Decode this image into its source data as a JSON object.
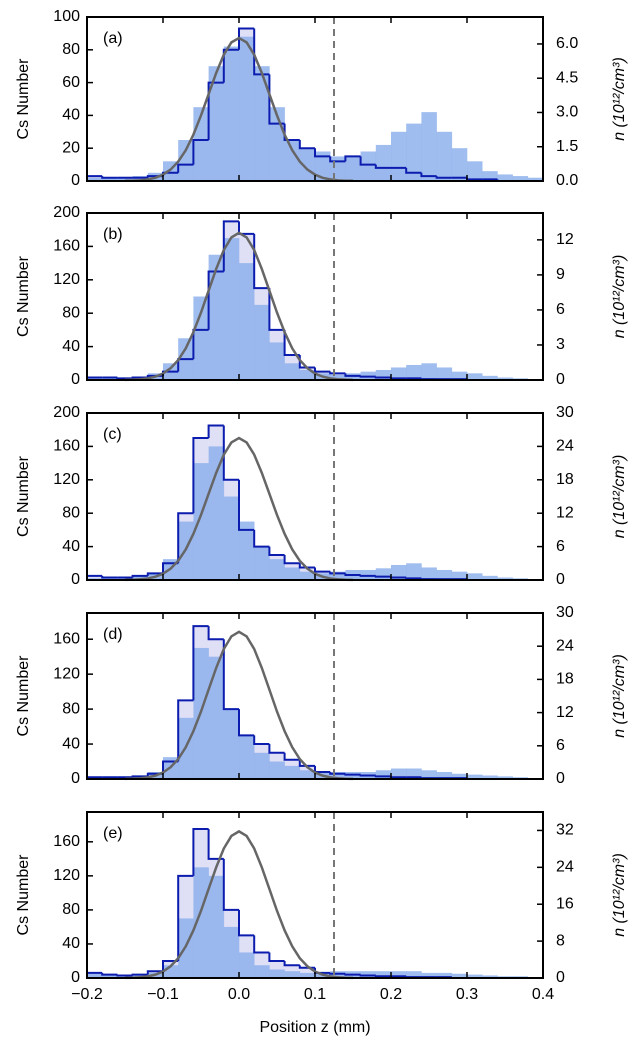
{
  "chart_data": [
    {
      "type": "histogram",
      "label": "(a)",
      "ylabel": "Cs Number",
      "y2label": "n (10¹²/cm³)",
      "vline": 0.125,
      "xlim": [
        -0.2,
        0.4
      ],
      "xticks": [
        -0.2,
        -0.1,
        0,
        0.1,
        0.2,
        0.3,
        0.4
      ],
      "ylim": [
        0,
        100
      ],
      "yticks": [
        0,
        20,
        40,
        60,
        80,
        100
      ],
      "y2lim": [
        0,
        7.18
      ],
      "y2ticks": [
        {
          "value": 0,
          "label": "0.0"
        },
        1.5,
        {
          "value": 3,
          "label": "3.0"
        },
        4.5,
        {
          "value": 6,
          "label": "6.0"
        }
      ],
      "bins": [
        -0.2,
        -0.18,
        -0.16,
        -0.14,
        -0.12,
        -0.1,
        -0.08,
        -0.06,
        -0.04,
        -0.02,
        0,
        0.02,
        0.04,
        0.06,
        0.08,
        0.1,
        0.12,
        0.14,
        0.16,
        0.18,
        0.2,
        0.22,
        0.24,
        0.26,
        0.28,
        0.3,
        0.32,
        0.34,
        0.36,
        0.38,
        0.4
      ],
      "series": [
        {
          "style": "filled",
          "color": "#8fb2ec",
          "values": [
            2,
            2,
            2,
            3,
            5,
            12,
            25,
            45,
            70,
            82,
            88,
            70,
            45,
            25,
            20,
            18,
            15,
            15,
            18,
            22,
            30,
            35,
            42,
            30,
            20,
            12,
            6,
            4,
            3,
            2
          ]
        },
        {
          "style": "step",
          "color": "#0b1cae",
          "fill": "#dfdff6",
          "values": [
            3,
            2,
            2,
            2,
            3,
            5,
            10,
            25,
            60,
            80,
            93,
            65,
            35,
            25,
            20,
            15,
            12,
            15,
            10,
            8,
            8,
            5,
            3,
            2,
            2,
            1,
            1,
            0,
            0,
            0
          ]
        },
        {
          "style": "line",
          "axis": "y2",
          "color": "#666666",
          "x": [
            -0.15,
            -0.14,
            -0.13,
            -0.12,
            -0.11,
            -0.1,
            -0.09,
            -0.08,
            -0.07,
            -0.06,
            -0.05,
            -0.04,
            -0.03,
            -0.02,
            -0.01,
            0,
            0.01,
            0.02,
            0.03,
            0.04,
            0.05,
            0.06,
            0.07,
            0.08,
            0.09,
            0.1,
            0.11,
            0.12,
            0.13,
            0.14,
            0.15
          ],
          "values": [
            0.01,
            0.01,
            0.03,
            0.07,
            0.14,
            0.28,
            0.5,
            0.85,
            1.35,
            2.03,
            2.87,
            3.8,
            4.73,
            5.53,
            6.07,
            6.26,
            6.07,
            5.53,
            4.73,
            3.8,
            2.87,
            2.03,
            1.35,
            0.85,
            0.5,
            0.28,
            0.14,
            0.07,
            0.03,
            0.01,
            0.01
          ]
        }
      ]
    },
    {
      "type": "histogram",
      "label": "(b)",
      "ylabel": "Cs Number",
      "y2label": "n (10¹²/cm³)",
      "vline": 0.125,
      "xlim": [
        -0.2,
        0.4
      ],
      "xticks": [
        -0.2,
        -0.1,
        0,
        0.1,
        0.2,
        0.3,
        0.4
      ],
      "ylim": [
        0,
        200
      ],
      "yticks": [
        0,
        40,
        80,
        120,
        160,
        200
      ],
      "y2lim": [
        0,
        14.3
      ],
      "y2ticks": [
        0,
        3,
        6,
        9,
        12
      ],
      "bins": [
        -0.2,
        -0.18,
        -0.16,
        -0.14,
        -0.12,
        -0.1,
        -0.08,
        -0.06,
        -0.04,
        -0.02,
        0,
        0.02,
        0.04,
        0.06,
        0.08,
        0.1,
        0.12,
        0.14,
        0.16,
        0.18,
        0.2,
        0.22,
        0.24,
        0.26,
        0.28,
        0.3,
        0.32,
        0.34,
        0.36,
        0.38,
        0.4
      ],
      "series": [
        {
          "style": "filled",
          "color": "#8fb2ec",
          "values": [
            2,
            3,
            3,
            4,
            8,
            20,
            50,
            100,
            150,
            170,
            140,
            90,
            45,
            20,
            12,
            8,
            6,
            8,
            10,
            12,
            15,
            18,
            20,
            15,
            10,
            8,
            5,
            3,
            2,
            1
          ]
        },
        {
          "style": "step",
          "color": "#0b1cae",
          "fill": "#dfdff6",
          "values": [
            3,
            3,
            2,
            3,
            5,
            10,
            25,
            60,
            130,
            190,
            175,
            110,
            60,
            30,
            15,
            10,
            8,
            5,
            4,
            3,
            2,
            2,
            1,
            1,
            1,
            0,
            0,
            0,
            0,
            0
          ]
        },
        {
          "style": "line",
          "axis": "y2",
          "color": "#666666",
          "x": [
            -0.15,
            -0.14,
            -0.13,
            -0.12,
            -0.11,
            -0.1,
            -0.09,
            -0.08,
            -0.07,
            -0.06,
            -0.05,
            -0.04,
            -0.03,
            -0.02,
            -0.01,
            0,
            0.01,
            0.02,
            0.03,
            0.04,
            0.05,
            0.06,
            0.07,
            0.08,
            0.09,
            0.1,
            0.11,
            0.12,
            0.13,
            0.14,
            0.15
          ],
          "values": [
            0.01,
            0.03,
            0.06,
            0.14,
            0.29,
            0.55,
            1.01,
            1.7,
            2.72,
            4.1,
            5.77,
            7.65,
            9.51,
            11.13,
            12.21,
            12.6,
            12.21,
            11.13,
            9.51,
            7.65,
            5.77,
            4.1,
            2.72,
            1.7,
            1.01,
            0.55,
            0.29,
            0.14,
            0.06,
            0.03,
            0.01
          ]
        }
      ]
    },
    {
      "type": "histogram",
      "label": "(c)",
      "ylabel": "Cs Number",
      "y2label": "n (10¹²/cm³)",
      "vline": 0.125,
      "xlim": [
        -0.2,
        0.4
      ],
      "xticks": [
        -0.2,
        -0.1,
        0,
        0.1,
        0.2,
        0.3,
        0.4
      ],
      "ylim": [
        0,
        200
      ],
      "yticks": [
        0,
        40,
        80,
        120,
        160,
        200
      ],
      "y2lim": [
        0,
        30
      ],
      "y2ticks": [
        0,
        6,
        12,
        18,
        24,
        30
      ],
      "bins": [
        -0.2,
        -0.18,
        -0.16,
        -0.14,
        -0.12,
        -0.1,
        -0.08,
        -0.06,
        -0.04,
        -0.02,
        0,
        0.02,
        0.04,
        0.06,
        0.08,
        0.1,
        0.12,
        0.14,
        0.16,
        0.18,
        0.2,
        0.22,
        0.24,
        0.26,
        0.28,
        0.3,
        0.32,
        0.34,
        0.36,
        0.38,
        0.4
      ],
      "series": [
        {
          "style": "filled",
          "color": "#8fb2ec",
          "values": [
            2,
            2,
            3,
            4,
            8,
            25,
            70,
            140,
            160,
            100,
            70,
            40,
            25,
            15,
            10,
            8,
            10,
            12,
            12,
            14,
            18,
            20,
            15,
            12,
            10,
            8,
            5,
            3,
            2,
            1
          ]
        },
        {
          "style": "step",
          "color": "#0b1cae",
          "fill": "#dfdff6",
          "values": [
            5,
            3,
            3,
            5,
            8,
            20,
            80,
            170,
            185,
            120,
            60,
            40,
            30,
            20,
            15,
            10,
            8,
            6,
            5,
            4,
            3,
            2,
            1,
            1,
            1,
            0,
            0,
            0,
            0,
            0
          ]
        },
        {
          "style": "line",
          "axis": "y2",
          "color": "#666666",
          "x": [
            -0.15,
            -0.14,
            -0.13,
            -0.12,
            -0.11,
            -0.1,
            -0.09,
            -0.08,
            -0.07,
            -0.06,
            -0.05,
            -0.04,
            -0.03,
            -0.02,
            -0.01,
            0,
            0.01,
            0.02,
            0.03,
            0.04,
            0.05,
            0.06,
            0.07,
            0.08,
            0.09,
            0.1,
            0.11,
            0.12,
            0.13,
            0.14,
            0.15
          ],
          "values": [
            0.03,
            0.05,
            0.13,
            0.28,
            0.59,
            1.12,
            2.04,
            3.44,
            5.51,
            8.29,
            11.68,
            15.48,
            19.25,
            22.52,
            24.71,
            25.5,
            24.71,
            22.52,
            19.25,
            15.48,
            11.68,
            8.29,
            5.51,
            3.44,
            2.04,
            1.12,
            0.59,
            0.28,
            0.13,
            0.05,
            0.03
          ]
        }
      ]
    },
    {
      "type": "histogram",
      "label": "(d)",
      "ylabel": "Cs Number",
      "y2label": "n (10¹²/cm³)",
      "vline": 0.125,
      "xlim": [
        -0.2,
        0.4
      ],
      "xticks": [
        -0.2,
        -0.1,
        0,
        0.1,
        0.2,
        0.3,
        0.4
      ],
      "ylim": [
        0,
        190
      ],
      "yticks": [
        0,
        40,
        80,
        120,
        160
      ],
      "y2lim": [
        0,
        30
      ],
      "y2ticks": [
        0,
        6,
        12,
        18,
        24,
        30
      ],
      "bins": [
        -0.2,
        -0.18,
        -0.16,
        -0.14,
        -0.12,
        -0.1,
        -0.08,
        -0.06,
        -0.04,
        -0.02,
        0,
        0.02,
        0.04,
        0.06,
        0.08,
        0.1,
        0.12,
        0.14,
        0.16,
        0.18,
        0.2,
        0.22,
        0.24,
        0.26,
        0.28,
        0.3,
        0.32,
        0.34,
        0.36,
        0.38,
        0.4
      ],
      "series": [
        {
          "style": "filled",
          "color": "#8fb2ec",
          "values": [
            3,
            3,
            3,
            4,
            8,
            25,
            70,
            150,
            140,
            80,
            50,
            30,
            20,
            15,
            10,
            8,
            8,
            8,
            8,
            10,
            12,
            12,
            10,
            8,
            6,
            5,
            4,
            3,
            2,
            1
          ]
        },
        {
          "style": "step",
          "color": "#0b1cae",
          "fill": "#dfdff6",
          "values": [
            2,
            2,
            2,
            3,
            6,
            20,
            90,
            175,
            160,
            80,
            50,
            40,
            30,
            22,
            15,
            8,
            6,
            5,
            4,
            3,
            2,
            2,
            1,
            1,
            1,
            0,
            0,
            0,
            0,
            0
          ]
        },
        {
          "style": "line",
          "axis": "y2",
          "color": "#666666",
          "x": [
            -0.15,
            -0.14,
            -0.13,
            -0.12,
            -0.11,
            -0.1,
            -0.09,
            -0.08,
            -0.07,
            -0.06,
            -0.05,
            -0.04,
            -0.03,
            -0.02,
            -0.01,
            0,
            0.01,
            0.02,
            0.03,
            0.04,
            0.05,
            0.06,
            0.07,
            0.08,
            0.09,
            0.1,
            0.11,
            0.12,
            0.13,
            0.14,
            0.15
          ],
          "values": [
            0.03,
            0.05,
            0.13,
            0.29,
            0.61,
            1.17,
            2.13,
            3.59,
            5.75,
            8.65,
            12.18,
            16.15,
            20.08,
            23.49,
            25.78,
            26.6,
            25.78,
            23.49,
            20.08,
            16.15,
            12.18,
            8.65,
            5.75,
            3.59,
            2.13,
            1.17,
            0.61,
            0.29,
            0.13,
            0.05,
            0.03
          ]
        }
      ]
    },
    {
      "type": "histogram",
      "label": "(e)",
      "ylabel": "Cs Number",
      "y2label": "n (10¹²/cm³)",
      "xlabel": "Position z (mm)",
      "vline": 0.125,
      "xlim": [
        -0.2,
        0.4
      ],
      "xticks": [
        {
          "value": -0.2,
          "label": "−0.2"
        },
        {
          "value": -0.1,
          "label": "−0.1"
        },
        {
          "value": 0,
          "label": "0.0"
        },
        0.1,
        0.2,
        0.3,
        0.4
      ],
      "ylim": [
        0,
        195
      ],
      "yticks": [
        0,
        40,
        80,
        120,
        160
      ],
      "y2lim": [
        0,
        36
      ],
      "y2ticks": [
        0,
        8,
        16,
        24,
        32
      ],
      "bins": [
        -0.2,
        -0.18,
        -0.16,
        -0.14,
        -0.12,
        -0.1,
        -0.08,
        -0.06,
        -0.04,
        -0.02,
        0,
        0.02,
        0.04,
        0.06,
        0.08,
        0.1,
        0.12,
        0.14,
        0.16,
        0.18,
        0.2,
        0.22,
        0.24,
        0.26,
        0.28,
        0.3,
        0.32,
        0.34,
        0.36,
        0.38,
        0.4
      ],
      "series": [
        {
          "style": "filled",
          "color": "#8fb2ec",
          "values": [
            5,
            5,
            4,
            4,
            6,
            15,
            70,
            130,
            120,
            60,
            30,
            15,
            10,
            8,
            6,
            6,
            8,
            8,
            8,
            8,
            8,
            8,
            6,
            6,
            5,
            4,
            3,
            2,
            2,
            1
          ]
        },
        {
          "style": "step",
          "color": "#0b1cae",
          "fill": "#dfdff6",
          "values": [
            6,
            4,
            3,
            4,
            8,
            20,
            120,
            175,
            140,
            80,
            50,
            30,
            20,
            15,
            12,
            6,
            5,
            4,
            3,
            2,
            2,
            1,
            1,
            1,
            0,
            0,
            0,
            0,
            0,
            0
          ]
        },
        {
          "style": "line",
          "axis": "y2",
          "color": "#666666",
          "x": [
            -0.15,
            -0.14,
            -0.13,
            -0.12,
            -0.11,
            -0.1,
            -0.09,
            -0.08,
            -0.07,
            -0.06,
            -0.05,
            -0.04,
            -0.03,
            -0.02,
            -0.01,
            0,
            0.01,
            0.02,
            0.03,
            0.04,
            0.05,
            0.06,
            0.07,
            0.08,
            0.09,
            0.1,
            0.11,
            0.12,
            0.13,
            0.14,
            0.15
          ],
          "values": [
            0.03,
            0.06,
            0.16,
            0.35,
            0.73,
            1.4,
            2.54,
            4.29,
            6.87,
            10.34,
            14.56,
            19.3,
            24.01,
            28.08,
            30.81,
            31.8,
            30.81,
            28.08,
            24.01,
            19.3,
            14.56,
            10.34,
            6.87,
            4.29,
            2.54,
            1.4,
            0.73,
            0.35,
            0.16,
            0.06,
            0.03
          ]
        }
      ]
    }
  ]
}
